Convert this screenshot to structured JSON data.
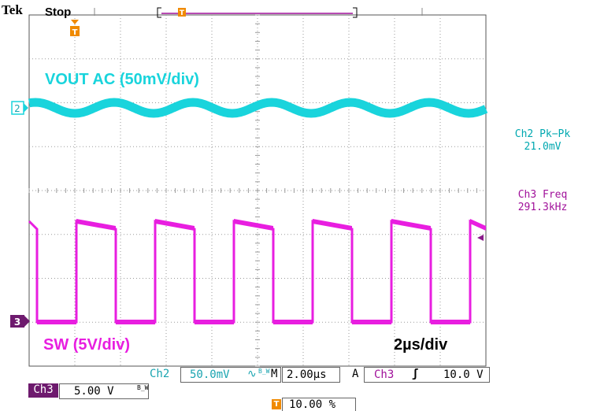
{
  "header": {
    "brand": "Tek",
    "status": "Stop"
  },
  "markers": {
    "trigger_symbol": "T",
    "ch2_marker": "2",
    "ch3_marker": "3"
  },
  "labels": {
    "ch2_trace": "VOUT AC (50mV/div)",
    "ch3_trace": "SW (5V/div)",
    "timebase_note": "2µs/div"
  },
  "measurements": [
    {
      "name": "Ch2 Pk−Pk",
      "value": "21.0mV"
    },
    {
      "name": "Ch3 Freq",
      "value": "291.3kHz"
    }
  ],
  "bottom_bar": {
    "ch2_label": "Ch2",
    "ch2_scale": "50.0mV",
    "coupling": "∿",
    "bw_limit": "B_W",
    "horizontal_label": "M",
    "horizontal_scale": "2.00µs",
    "trigger_mode": "A",
    "trigger_source": "Ch3",
    "trigger_slope": "ʃ",
    "trigger_level": "10.0 V",
    "ch3_label": "Ch3",
    "ch3_scale": "5.00 V",
    "ch3_bw": "B_W",
    "trigger_position": "10.00 %"
  },
  "colors": {
    "ch2": "#19d4dc",
    "ch3": "#e81ee0",
    "ch3_dark": "#8a1b8a",
    "trigger": "#f08a00",
    "grid": "#9a9a9a"
  },
  "chart_data": {
    "type": "line",
    "divisions": {
      "x": 10,
      "y": 8
    },
    "series": [
      {
        "name": "VOUT AC (50mV/div)",
        "shape": "sine",
        "pk_pk_mV": 21.0,
        "periods_on_screen": 5.8
      },
      {
        "name": "SW (5V/div)",
        "shape": "square",
        "freq_kHz": 291.3,
        "duty": 0.5,
        "periods_on_screen": 5.8
      }
    ]
  }
}
